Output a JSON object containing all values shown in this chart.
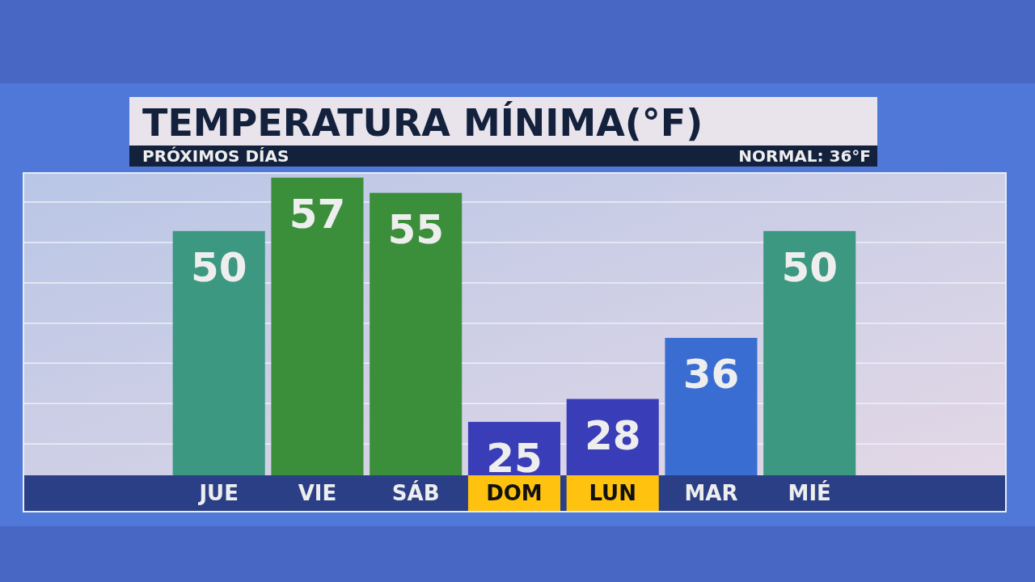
{
  "chart_data": {
    "type": "bar",
    "title": "TEMPERATURA MÍNIMA(°F)",
    "subtitle": "PRÓXIMOS DÍAS",
    "annotations": [
      "NORMAL: 36°F"
    ],
    "categories": [
      "JUE",
      "VIE",
      "SÁB",
      "DOM",
      "LUN",
      "MAR",
      "MIÉ"
    ],
    "values": [
      50,
      57,
      55,
      25,
      28,
      36,
      50
    ],
    "colors": [
      "#3c9880",
      "#3b8f3b",
      "#3b8f3b",
      "#3a3db8",
      "#3a3db8",
      "#3a6dd2",
      "#3c9880"
    ],
    "ylim": [
      18,
      57.5
    ],
    "yticks": [
      {
        "value": 22.1,
        "label": null
      },
      {
        "value": 27.4,
        "label": null
      },
      {
        "value": 32.7,
        "label": null
      },
      {
        "value": 37.9,
        "label": null
      },
      {
        "value": 43.2,
        "label": null
      },
      {
        "value": 48.5,
        "label": null
      },
      {
        "value": 53.8,
        "label": null
      }
    ],
    "grid": true,
    "data_labels": true
  }
}
